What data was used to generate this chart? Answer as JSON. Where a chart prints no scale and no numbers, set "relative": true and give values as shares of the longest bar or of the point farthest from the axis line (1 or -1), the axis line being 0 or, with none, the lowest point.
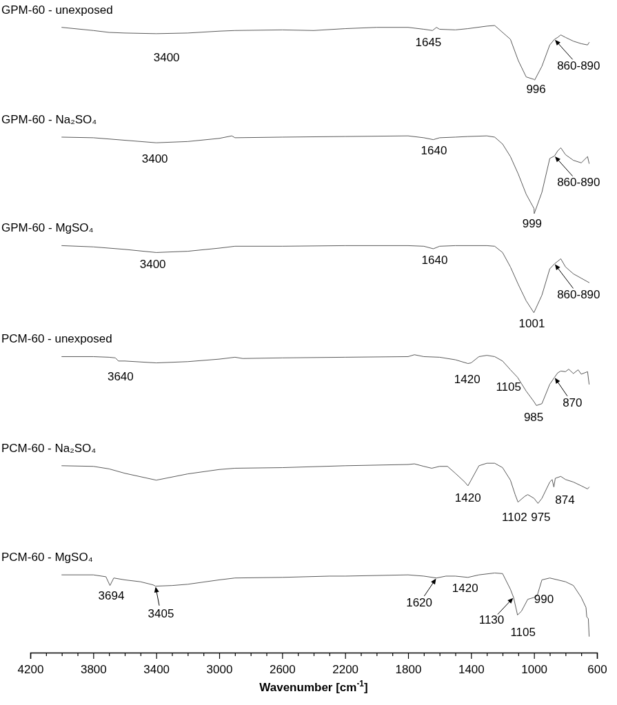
{
  "chart_data": {
    "type": "line",
    "relative": true,
    "xlabel": "Wavenumber [cm$^{-1}$]",
    "xlim": [
      4200,
      600
    ],
    "xticks": [
      4200,
      {
        "value": 4100,
        "label": null
      },
      {
        "value": 4000,
        "label": null
      },
      {
        "value": 3900,
        "label": null
      },
      3800,
      {
        "value": 3700,
        "label": null
      },
      {
        "value": 3600,
        "label": null
      },
      {
        "value": 3500,
        "label": null
      },
      3400,
      {
        "value": 3300,
        "label": null
      },
      {
        "value": 3200,
        "label": null
      },
      {
        "value": 3100,
        "label": null
      },
      3000,
      {
        "value": 2900,
        "label": null
      },
      {
        "value": 2800,
        "label": null
      },
      {
        "value": 2700,
        "label": null
      },
      2600,
      {
        "value": 2500,
        "label": null
      },
      {
        "value": 2400,
        "label": null
      },
      {
        "value": 2300,
        "label": null
      },
      2200,
      {
        "value": 2100,
        "label": null
      },
      {
        "value": 2000,
        "label": null
      },
      {
        "value": 1900,
        "label": null
      },
      1800,
      {
        "value": 1700,
        "label": null
      },
      {
        "value": 1600,
        "label": null
      },
      {
        "value": 1500,
        "label": null
      },
      1400,
      {
        "value": 1300,
        "label": null
      },
      {
        "value": 1200,
        "label": null
      },
      {
        "value": 1100,
        "label": null
      },
      1000,
      {
        "value": 900,
        "label": null
      },
      {
        "value": 800,
        "label": null
      },
      {
        "value": 700,
        "label": null
      },
      600
    ],
    "line_style": "solid",
    "series": [
      {
        "name": "GPM-60 - unexposed",
        "color": "#595959",
        "x": [
          4000,
          3800,
          3700,
          3600,
          3400,
          3200,
          3000,
          2900,
          2600,
          2400,
          2200,
          2000,
          1800,
          1700,
          1645,
          1620,
          1600,
          1500,
          1420,
          1300,
          1250,
          1200,
          1150,
          1100,
          1050,
          1000,
          996,
          950,
          900,
          870,
          850,
          830,
          800,
          750,
          700,
          660,
          650
        ],
        "values": [
          0.997,
          0.992,
          0.989,
          0.988,
          0.987,
          0.988,
          0.991,
          0.992,
          0.993,
          0.992,
          0.995,
          0.997,
          0.997,
          0.994,
          0.992,
          0.997,
          0.994,
          0.993,
          0.995,
          0.999,
          1.0,
          0.989,
          0.978,
          0.944,
          0.918,
          0.914,
          0.913,
          0.935,
          0.969,
          0.978,
          0.981,
          0.985,
          0.981,
          0.975,
          0.971,
          0.969,
          0.973
        ]
      },
      {
        "name": "GPM-60 - Na₂SO₄",
        "color": "#595959",
        "x": [
          4000,
          3800,
          3600,
          3400,
          3200,
          3000,
          2920,
          2900,
          2600,
          2200,
          1800,
          1700,
          1640,
          1600,
          1500,
          1420,
          1300,
          1250,
          1200,
          1150,
          1100,
          1050,
          1000,
          999,
          950,
          900,
          870,
          850,
          830,
          800,
          750,
          700,
          660,
          650
        ],
        "values": [
          0.822,
          0.821,
          0.817,
          0.813,
          0.815,
          0.82,
          0.824,
          0.821,
          0.822,
          0.823,
          0.824,
          0.821,
          0.818,
          0.821,
          0.822,
          0.823,
          0.824,
          0.822,
          0.811,
          0.791,
          0.763,
          0.731,
          0.708,
          0.7,
          0.734,
          0.788,
          0.792,
          0.8,
          0.805,
          0.794,
          0.785,
          0.781,
          0.791,
          0.78
        ]
      },
      {
        "name": "GPM-60 - MgSO₄",
        "color": "#595959",
        "x": [
          4000,
          3800,
          3600,
          3400,
          3200,
          3000,
          2900,
          2600,
          2200,
          1800,
          1700,
          1640,
          1600,
          1500,
          1300,
          1250,
          1200,
          1150,
          1100,
          1050,
          1001,
          950,
          900,
          870,
          850,
          830,
          800,
          750,
          700,
          650
        ],
        "values": [
          0.649,
          0.647,
          0.643,
          0.638,
          0.64,
          0.645,
          0.648,
          0.648,
          0.649,
          0.649,
          0.648,
          0.644,
          0.648,
          0.649,
          0.649,
          0.648,
          0.638,
          0.615,
          0.587,
          0.561,
          0.542,
          0.57,
          0.612,
          0.62,
          0.624,
          0.628,
          0.615,
          0.604,
          0.597,
          0.59
        ]
      },
      {
        "name": "PCM-60 - unexposed",
        "color": "#595959",
        "x": [
          4000,
          3800,
          3700,
          3660,
          3640,
          3600,
          3400,
          3200,
          3000,
          2900,
          2850,
          2600,
          2200,
          1800,
          1760,
          1700,
          1600,
          1500,
          1420,
          1400,
          1350,
          1300,
          1250,
          1200,
          1150,
          1105,
          1050,
          1000,
          985,
          950,
          900,
          870,
          850,
          830,
          800,
          780,
          750,
          720,
          700,
          660,
          650
        ],
        "values": [
          0.472,
          0.472,
          0.471,
          0.47,
          0.465,
          0.465,
          0.462,
          0.464,
          0.468,
          0.471,
          0.469,
          0.47,
          0.471,
          0.472,
          0.475,
          0.472,
          0.471,
          0.467,
          0.461,
          0.462,
          0.472,
          0.474,
          0.472,
          0.465,
          0.451,
          0.439,
          0.417,
          0.4,
          0.394,
          0.397,
          0.428,
          0.439,
          0.446,
          0.449,
          0.448,
          0.452,
          0.445,
          0.451,
          0.444,
          0.448,
          0.428
        ]
      },
      {
        "name": "PCM-60 - Na₂SO₄",
        "color": "#595959",
        "x": [
          4000,
          3800,
          3700,
          3600,
          3400,
          3200,
          3000,
          2900,
          2600,
          2200,
          1800,
          1760,
          1700,
          1650,
          1600,
          1550,
          1500,
          1440,
          1420,
          1400,
          1350,
          1300,
          1250,
          1200,
          1150,
          1120,
          1102,
          1060,
          1040,
          1000,
          975,
          950,
          900,
          885,
          874,
          865,
          830,
          800,
          750,
          700,
          660,
          650
        ],
        "values": [
          0.298,
          0.297,
          0.293,
          0.286,
          0.275,
          0.285,
          0.292,
          0.294,
          0.295,
          0.298,
          0.3,
          0.301,
          0.297,
          0.294,
          0.297,
          0.297,
          0.286,
          0.272,
          0.266,
          0.275,
          0.298,
          0.302,
          0.302,
          0.295,
          0.275,
          0.252,
          0.24,
          0.249,
          0.252,
          0.246,
          0.238,
          0.246,
          0.272,
          0.276,
          0.264,
          0.278,
          0.281,
          0.276,
          0.272,
          0.266,
          0.261,
          0.264
        ]
      },
      {
        "name": "PCM-60 - MgSO₄",
        "color": "#595959",
        "x": [
          4000,
          3800,
          3720,
          3694,
          3670,
          3600,
          3500,
          3420,
          3405,
          3300,
          3200,
          3000,
          2900,
          2600,
          2300,
          2200,
          1800,
          1700,
          1620,
          1560,
          1500,
          1420,
          1350,
          1250,
          1200,
          1150,
          1130,
          1105,
          1080,
          1040,
          1000,
          980,
          950,
          900,
          800,
          750,
          700,
          670,
          665,
          655,
          650
        ],
        "values": [
          0.124,
          0.124,
          0.121,
          0.107,
          0.119,
          0.116,
          0.113,
          0.108,
          0.106,
          0.107,
          0.109,
          0.116,
          0.119,
          0.12,
          0.122,
          0.122,
          0.124,
          0.122,
          0.119,
          0.122,
          0.122,
          0.12,
          0.124,
          0.127,
          0.126,
          0.101,
          0.088,
          0.06,
          0.066,
          0.085,
          0.088,
          0.091,
          0.116,
          0.119,
          0.113,
          0.107,
          0.088,
          0.072,
          0.057,
          0.054,
          0.026
        ]
      }
    ],
    "annotations": [
      {
        "text": "3400",
        "x": 3400,
        "y": 0.987
      },
      {
        "text": "1645",
        "x": 1645,
        "y": 0.992
      },
      {
        "text": "996",
        "x": 996,
        "y": 0.913
      },
      {
        "text": "860-890",
        "x": 870,
        "y": 0.978
      },
      {
        "text": "3400",
        "x": 3400,
        "y": 0.813
      },
      {
        "text": "1640",
        "x": 1640,
        "y": 0.818
      },
      {
        "text": "999",
        "x": 999,
        "y": 0.7
      },
      {
        "text": "860-890",
        "x": 870,
        "y": 0.792
      },
      {
        "text": "3400",
        "x": 3400,
        "y": 0.638
      },
      {
        "text": "1640",
        "x": 1640,
        "y": 0.644
      },
      {
        "text": "1001",
        "x": 1001,
        "y": 0.542
      },
      {
        "text": "860-890",
        "x": 870,
        "y": 0.62
      },
      {
        "text": "3640",
        "x": 3640,
        "y": 0.465
      },
      {
        "text": "1420",
        "x": 1420,
        "y": 0.461
      },
      {
        "text": "1105",
        "x": 1105,
        "y": 0.439
      },
      {
        "text": "985",
        "x": 985,
        "y": 0.394
      },
      {
        "text": "870",
        "x": 870,
        "y": 0.439
      },
      {
        "text": "1420",
        "x": 1420,
        "y": 0.266
      },
      {
        "text": "1102",
        "x": 1102,
        "y": 0.24
      },
      {
        "text": "975",
        "x": 975,
        "y": 0.238
      },
      {
        "text": "874",
        "x": 874,
        "y": 0.264
      },
      {
        "text": "3694",
        "x": 3694,
        "y": 0.107
      },
      {
        "text": "3405",
        "x": 3405,
        "y": 0.106
      },
      {
        "text": "1620",
        "x": 1620,
        "y": 0.119
      },
      {
        "text": "1420",
        "x": 1420,
        "y": 0.12
      },
      {
        "text": "1130",
        "x": 1130,
        "y": 0.088
      },
      {
        "text": "1105",
        "x": 1105,
        "y": 0.06
      },
      {
        "text": "990",
        "x": 990,
        "y": 0.091
      }
    ]
  }
}
